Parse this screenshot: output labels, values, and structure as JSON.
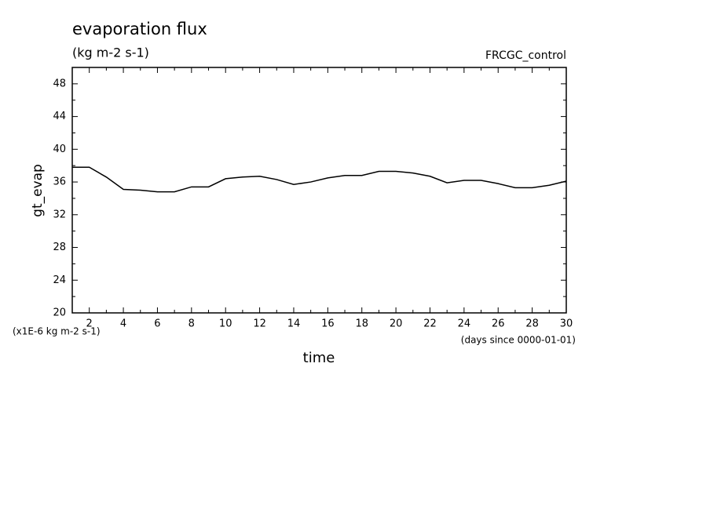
{
  "chart_data": {
    "type": "line",
    "title": "evaporation flux",
    "subtitle": "(kg m-2 s-1)",
    "annotation": "FRCGC_control",
    "y_label": "gt_evap",
    "x_label": "time",
    "y_unit_note": "(x1E-6 kg m-2 s-1)",
    "x_unit_note": "(days since 0000-01-01)",
    "x": [
      1,
      2,
      3,
      4,
      5,
      6,
      7,
      8,
      9,
      10,
      11,
      12,
      13,
      14,
      15,
      16,
      17,
      18,
      19,
      20,
      21,
      22,
      23,
      24,
      25,
      26,
      27,
      28,
      29,
      30
    ],
    "series": [
      {
        "name": "gt_evap",
        "color": "#000000",
        "values": [
          37.8,
          37.8,
          36.6,
          35.1,
          35.0,
          34.8,
          34.8,
          35.4,
          35.4,
          36.4,
          36.6,
          36.7,
          36.3,
          35.7,
          36.0,
          36.5,
          36.8,
          36.8,
          37.3,
          37.3,
          37.1,
          36.7,
          35.9,
          36.2,
          36.2,
          35.8,
          35.3,
          35.3,
          35.6,
          36.1
        ]
      }
    ],
    "xlim": [
      1,
      30
    ],
    "xticks": [
      2,
      4,
      6,
      8,
      10,
      12,
      14,
      16,
      18,
      20,
      22,
      24,
      26,
      28,
      30
    ],
    "ylim": [
      20,
      50
    ],
    "yticks": [
      20,
      24,
      28,
      32,
      36,
      40,
      44,
      48
    ],
    "grid": false
  }
}
